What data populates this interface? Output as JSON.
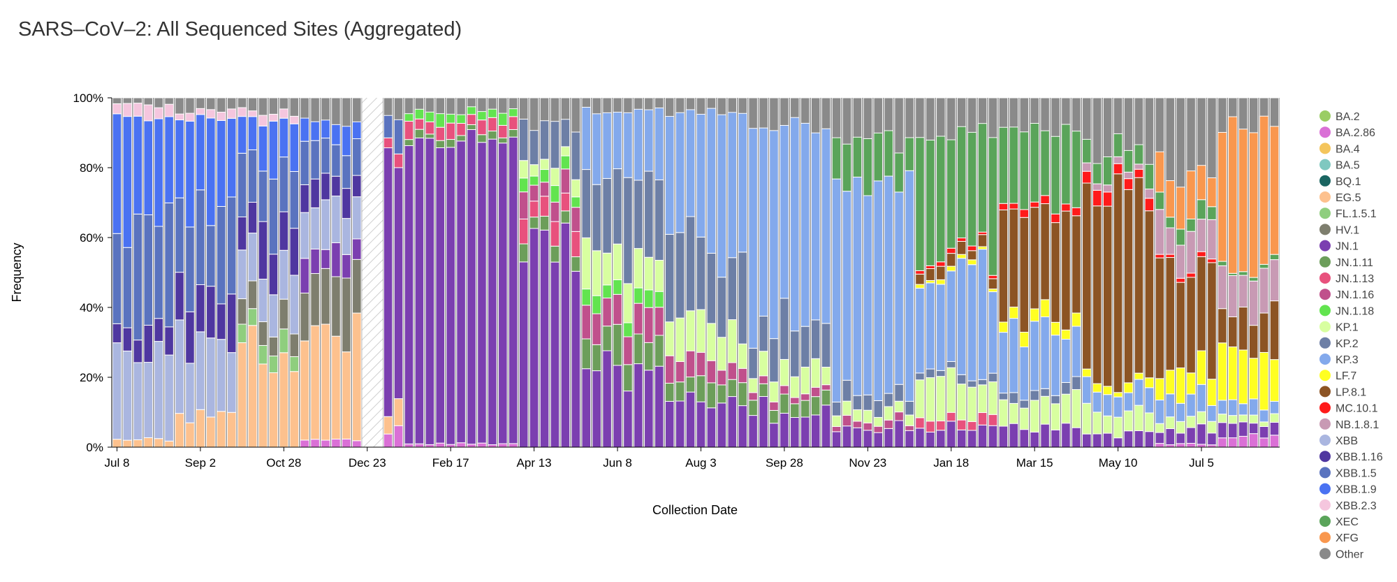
{
  "chart_data": {
    "type": "bar",
    "stacked": true,
    "title": "SARS–CoV–2: All Sequenced Sites (Aggregated)",
    "xlabel": "Collection Date",
    "ylabel": "Frequency",
    "ylim": [
      0,
      100
    ],
    "y_ticks": [
      "0%",
      "20%",
      "40%",
      "60%",
      "80%",
      "100%"
    ],
    "x_ticks": [
      "Jul 8",
      "Sep 2",
      "Oct 28",
      "Dec 23",
      "Feb 17",
      "Apr 13",
      "Jun 8",
      "Aug 3",
      "Sep 28",
      "Nov 23",
      "Jan 18",
      "Mar 15",
      "May 10",
      "Jul 5"
    ],
    "x_unit": "week",
    "week_count": 112,
    "missing_weeks": [
      24,
      25
    ],
    "legend_position": "right",
    "grid": false,
    "variants": [
      "BA.2",
      "BA.2.86",
      "BA.4",
      "BA.5",
      "BQ.1",
      "EG.5",
      "FL.1.5.1",
      "HV.1",
      "JN.1",
      "JN.1.11",
      "JN.1.13",
      "JN.1.16",
      "JN.1.18",
      "KP.1",
      "KP.2",
      "KP.3",
      "LF.7",
      "LP.8.1",
      "MC.10.1",
      "NB.1.8.1",
      "XBB",
      "XBB.1.16",
      "XBB.1.5",
      "XBB.1.9",
      "XBB.2.3",
      "XEC",
      "XFG",
      "Other"
    ],
    "colors": {
      "BA.2": "#9acd64",
      "BA.2.86": "#da70d6",
      "BA.4": "#f4c55c",
      "BA.5": "#7fc8c0",
      "BQ.1": "#1a6561",
      "EG.5": "#fdc18e",
      "FL.1.5.1": "#8fce7e",
      "HV.1": "#7e7e6e",
      "JN.1": "#7b3fb0",
      "JN.1.11": "#6c9e5a",
      "JN.1.13": "#e8517d",
      "JN.1.16": "#c0508c",
      "JN.1.18": "#62e44f",
      "KP.1": "#d8ffa0",
      "KP.2": "#6d7fa6",
      "KP.3": "#83a9ec",
      "LF.7": "#ffff22",
      "LP.8.1": "#8c5424",
      "MC.10.1": "#ff1a1a",
      "NB.1.8.1": "#c89ab4",
      "XBB": "#aab6e0",
      "XBB.1.16": "#4f37a0",
      "XBB.1.5": "#5a73bf",
      "XBB.1.9": "#4a72f2",
      "XBB.2.3": "#f5c6de",
      "XEC": "#5aa45a",
      "XFG": "#f9974e",
      "Other": "#8a8a8a"
    },
    "phases": [
      {
        "weeks": [
          0,
          5
        ],
        "shares": {
          "XBB": 24,
          "EG.5": 2,
          "XBB.1.16": 8,
          "XBB.1.5": 30,
          "XBB.1.9": 30,
          "XBB.2.3": 4,
          "Other": 2
        }
      },
      {
        "weeks": [
          6,
          11
        ],
        "shares": {
          "XBB": 22,
          "EG.5": 10,
          "XBB.1.16": 14,
          "XBB.1.5": 22,
          "XBB.1.9": 26,
          "XBB.2.3": 2,
          "Other": 4
        }
      },
      {
        "weeks": [
          12,
          17
        ],
        "shares": {
          "XBB": 12,
          "EG.5": 28,
          "FL.1.5.1": 5,
          "HV.1": 7,
          "XBB.1.16": 12,
          "XBB.1.5": 16,
          "XBB.1.9": 14,
          "XBB.2.3": 2,
          "Other": 4
        }
      },
      {
        "weeks": [
          18,
          23
        ],
        "shares": {
          "BA.2.86": 2,
          "XBB": 12,
          "EG.5": 30,
          "HV.1": 18,
          "JN.1": 8,
          "XBB.1.16": 8,
          "XBB.1.5": 10,
          "XBB.1.9": 6,
          "Other": 6
        }
      },
      {
        "weeks": [
          26,
          27
        ],
        "shares": {
          "BA.2.86": 4,
          "EG.5": 6,
          "JN.1": 72,
          "XBB.1.5": 8,
          "JN.1.13": 4,
          "Other": 6
        }
      },
      {
        "weeks": [
          28,
          38
        ],
        "shares": {
          "BA.2.86": 1,
          "JN.1": 86,
          "JN.1.13": 4,
          "JN.1.11": 2,
          "JN.1.18": 3,
          "Other": 4
        }
      },
      {
        "weeks": [
          39,
          44
        ],
        "shares": {
          "JN.1": 56,
          "JN.1.13": 6,
          "JN.1.16": 6,
          "JN.1.11": 4,
          "JN.1.18": 4,
          "KP.1": 4,
          "KP.2": 12,
          "Other": 8
        }
      },
      {
        "weeks": [
          45,
          52
        ],
        "shares": {
          "JN.1": 20,
          "JN.1.11": 8,
          "JN.1.16": 10,
          "JN.1.18": 4,
          "KP.1": 12,
          "KP.2": 24,
          "KP.3": 18,
          "Other": 4
        }
      },
      {
        "weeks": [
          53,
          60
        ],
        "shares": {
          "JN.1": 14,
          "JN.1.11": 6,
          "JN.1.16": 6,
          "KP.1": 10,
          "KP.2": 22,
          "KP.3": 38,
          "Other": 4
        }
      },
      {
        "weeks": [
          61,
          68
        ],
        "shares": {
          "JN.1": 10,
          "JN.1.11": 4,
          "JN.1.16": 2,
          "KP.1": 6,
          "KP.2": 12,
          "KP.3": 58,
          "Other": 8
        }
      },
      {
        "weeks": [
          69,
          76
        ],
        "shares": {
          "JN.1": 5,
          "JN.1.16": 2,
          "KP.1": 3,
          "KP.2": 4,
          "KP.3": 62,
          "XEC": 12,
          "Other": 12
        }
      },
      {
        "weeks": [
          77,
          84
        ],
        "shares": {
          "JN.1": 6,
          "JN.1.13": 3,
          "KP.1": 10,
          "KP.2": 2,
          "KP.3": 30,
          "XEC": 34,
          "LP.8.1": 3,
          "MC.10.1": 1,
          "LF.7": 1,
          "Other": 10
        }
      },
      {
        "weeks": [
          85,
          92
        ],
        "shares": {
          "JN.1": 6,
          "KP.1": 8,
          "KP.2": 3,
          "KP.3": 18,
          "XEC": 20,
          "LP.8.1": 30,
          "MC.10.1": 2,
          "LF.7": 4,
          "Other": 9
        }
      },
      {
        "weeks": [
          93,
          99
        ],
        "shares": {
          "JN.1": 4,
          "KP.1": 6,
          "KP.3": 6,
          "XEC": 6,
          "LP.8.1": 58,
          "MC.10.1": 3,
          "LF.7": 2,
          "NB.1.8.1": 2,
          "Other": 13
        }
      },
      {
        "weeks": [
          100,
          105
        ],
        "shares": {
          "JN.1": 4,
          "BA.2.86": 1,
          "KP.1": 3,
          "KP.3": 6,
          "XEC": 4,
          "LP.8.1": 30,
          "NB.1.8.1": 10,
          "LF.7": 8,
          "XFG": 12,
          "MC.10.1": 1,
          "Other": 21
        }
      },
      {
        "weeks": [
          106,
          111
        ],
        "shares": {
          "JN.1": 4,
          "BA.2.86": 3,
          "KP.1": 2,
          "KP.3": 4,
          "LP.8.1": 12,
          "NB.1.8.1": 12,
          "LF.7": 14,
          "XFG": 40,
          "XEC": 1,
          "Other": 8
        }
      }
    ]
  }
}
